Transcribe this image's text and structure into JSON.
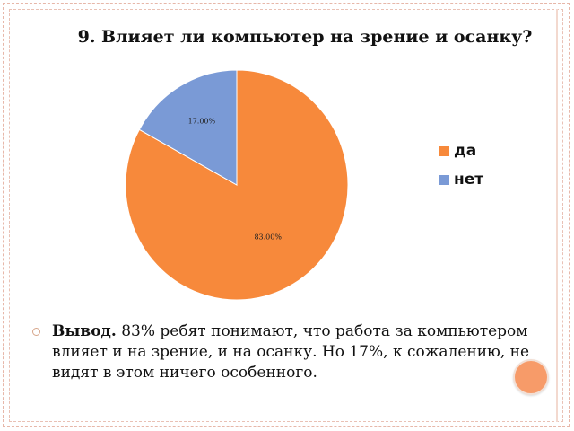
{
  "slide": {
    "title": "9. Влияет ли компьютер на зрение и осанку?",
    "conclusion_lead": "Вывод.",
    "conclusion_text": " 83% ребят понимают, что работа за компьютером влияет и на зрение, и на осанку. Но 17%, к сожалению, не видят в этом ничего особенного."
  },
  "colors": {
    "orange": "#f7893b",
    "blue": "#7a9ad6"
  },
  "chart_data": {
    "type": "pie",
    "title": "9. Влияет ли компьютер на зрение и осанку?",
    "categories": [
      "да",
      "нет"
    ],
    "values": [
      83,
      17
    ],
    "data_labels": [
      "83.00%",
      "17.00%"
    ],
    "legend_position": "right"
  }
}
